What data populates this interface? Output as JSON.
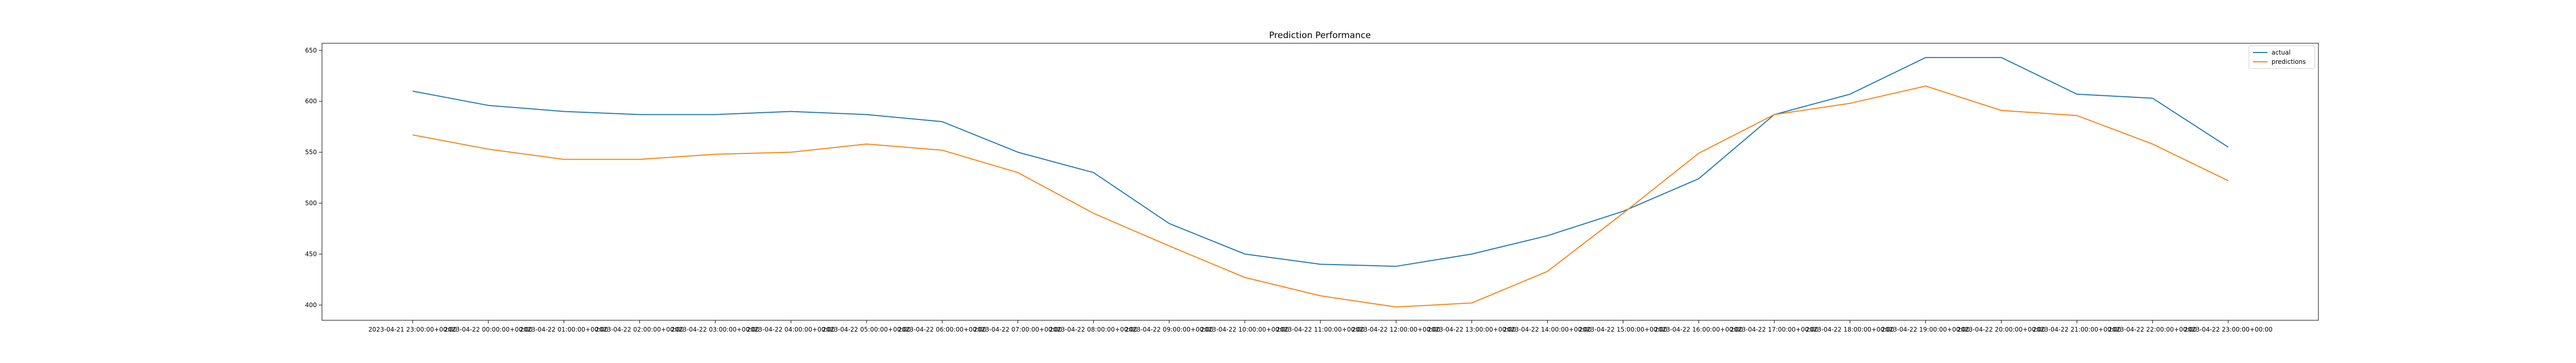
{
  "chart_data": {
    "type": "line",
    "title": "Prediction Performance",
    "xlabel": "",
    "ylabel": "",
    "categories": [
      "2023-04-21 23:00:00+00:00",
      "2023-04-22 00:00:00+00:00",
      "2023-04-22 01:00:00+00:00",
      "2023-04-22 02:00:00+00:00",
      "2023-04-22 03:00:00+00:00",
      "2023-04-22 04:00:00+00:00",
      "2023-04-22 05:00:00+00:00",
      "2023-04-22 06:00:00+00:00",
      "2023-04-22 07:00:00+00:00",
      "2023-04-22 08:00:00+00:00",
      "2023-04-22 09:00:00+00:00",
      "2023-04-22 10:00:00+00:00",
      "2023-04-22 11:00:00+00:00",
      "2023-04-22 12:00:00+00:00",
      "2023-04-22 13:00:00+00:00",
      "2023-04-22 14:00:00+00:00",
      "2023-04-22 15:00:00+00:00",
      "2023-04-22 16:00:00+00:00",
      "2023-04-22 17:00:00+00:00",
      "2023-04-22 18:00:00+00:00",
      "2023-04-22 19:00:00+00:00",
      "2023-04-22 20:00:00+00:00",
      "2023-04-22 21:00:00+00:00",
      "2023-04-22 22:00:00+00:00",
      "2023-04-22 23:00:00+00:00"
    ],
    "series": [
      {
        "name": "actual",
        "color": "#1f77b4",
        "values": [
          610,
          596,
          590,
          587,
          587,
          590,
          587,
          580,
          550,
          530,
          480,
          450,
          440,
          438,
          450,
          468,
          492,
          524,
          587,
          607,
          643,
          643,
          607,
          603,
          555
        ]
      },
      {
        "name": "predictions",
        "color": "#ff7f0e",
        "values": [
          567,
          553,
          543,
          543,
          548,
          550,
          558,
          552,
          530,
          490,
          458,
          427,
          409,
          398,
          402,
          433,
          490,
          549,
          587,
          598,
          615,
          591,
          586,
          558,
          522
        ]
      }
    ],
    "yticks": [
      400,
      450,
      500,
      550,
      600,
      650
    ],
    "ylim": [
      385,
      657
    ],
    "grid": false,
    "legend_position": "top-right"
  }
}
